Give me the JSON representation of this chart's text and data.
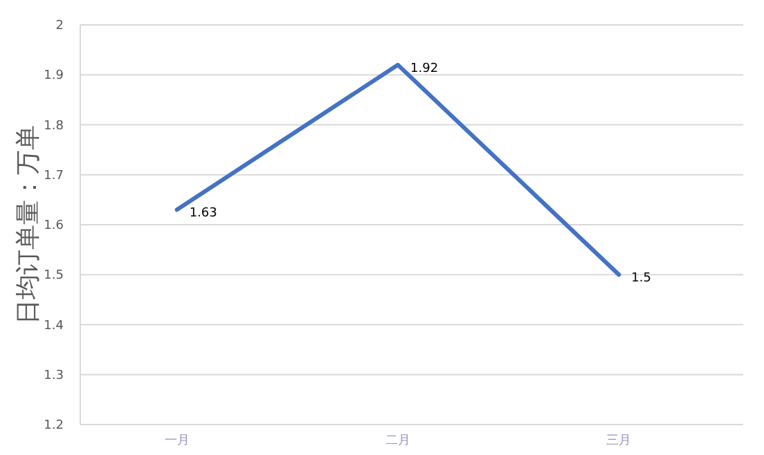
{
  "chart_data": {
    "type": "line",
    "ylabel": "日均订单量：万单",
    "categories": [
      "一月",
      "二月",
      "三月"
    ],
    "series": [
      {
        "color": "#4472c4",
        "values": [
          1.63,
          1.92,
          1.5
        ]
      }
    ],
    "ylim": [
      1.2,
      2
    ],
    "yticks": [
      1.2,
      1.3,
      1.4,
      1.5,
      1.6,
      1.7,
      1.8,
      1.9,
      2
    ],
    "grid": "y",
    "data_labels": true,
    "marker": "none",
    "line_style": "solid"
  }
}
